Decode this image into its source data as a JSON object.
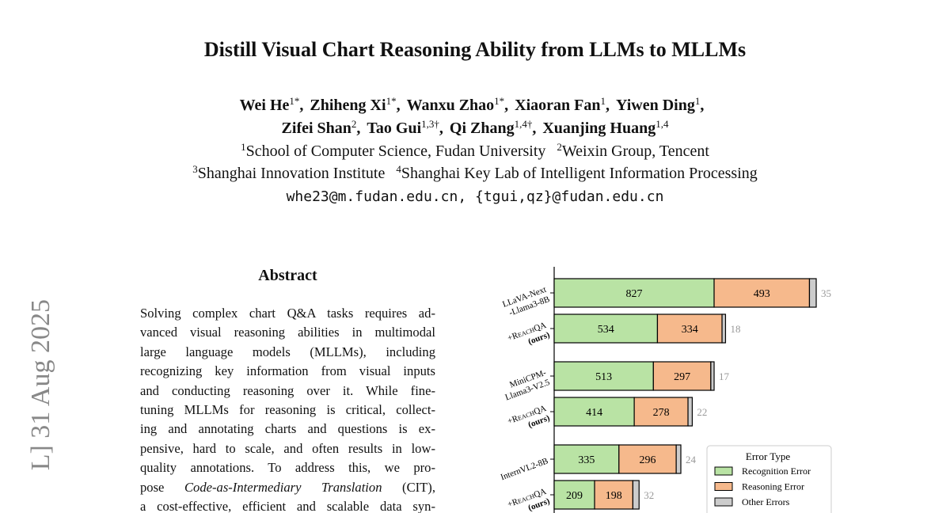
{
  "header": {
    "title": "Distill Visual Chart Reasoning Ability from LLMs to MLLMs",
    "authors": [
      [
        {
          "name": "Wei He",
          "sup": "1*",
          "sep": ","
        },
        {
          "name": "Zhiheng Xi",
          "sup": "1*",
          "sep": ","
        },
        {
          "name": "Wanxu Zhao",
          "sup": "1*",
          "sep": ","
        },
        {
          "name": "Xiaoran Fan",
          "sup": "1",
          "sep": ","
        },
        {
          "name": "Yiwen Ding",
          "sup": "1",
          "sep": ","
        }
      ],
      [
        {
          "name": "Zifei Shan",
          "sup": "2",
          "sep": ","
        },
        {
          "name": "Tao Gui",
          "sup": "1,3†",
          "sep": ","
        },
        {
          "name": "Qi Zhang",
          "sup": "1,4†",
          "sep": ","
        },
        {
          "name": "Xuanjing Huang",
          "sup": "1,4"
        }
      ]
    ],
    "affiliations": [
      [
        {
          "sup": "1",
          "text": "School of Computer Science, Fudan University"
        },
        {
          "sup": "2",
          "text": "Weixin Group, Tencent"
        }
      ],
      [
        {
          "sup": "3",
          "text": "Shanghai Innovation Institute"
        },
        {
          "sup": "4",
          "text": "Shanghai Key Lab of Intelligent Information Processing"
        }
      ]
    ],
    "emails": "whe23@m.fudan.edu.cn, {tgui,qz}@fudan.edu.cn"
  },
  "side_note": "L] 31 Aug 2025",
  "abstract": {
    "heading": "Abstract",
    "lines": [
      "Solving complex chart Q&A tasks requires ad-",
      "vanced visual reasoning abilities in multimodal",
      "large language models (MLLMs), including",
      "recognizing key information from visual inputs",
      "and conducting reasoning over it. While fine-",
      "tuning MLLMs for reasoning is critical, collect-",
      "ing and annotating charts and questions is ex-",
      "pensive, hard to scale, and often results in low-",
      "quality annotations. To address this, we pro-"
    ],
    "styled_line": {
      "before": "pose ",
      "italic": "Code-as-Intermediary Translation",
      "after": " (CIT),"
    },
    "last_line": "a cost-effective, efficient and scalable data syn-"
  },
  "chart_data": {
    "type": "bar",
    "orientation": "horizontal",
    "stacked": true,
    "categories": [
      [
        "LLaVA-Next",
        "-Llama3-8B"
      ],
      [
        "+ReachQA",
        "(ours)"
      ],
      [
        "MiniCPM-",
        "Llama3-V2.5"
      ],
      [
        "+ReachQA",
        "(ours)"
      ],
      [
        "InternVL2-8B"
      ],
      [
        "+ReachQA",
        "(ours)"
      ]
    ],
    "series": [
      {
        "name": "Recognition Error",
        "color": "#b9e3a4",
        "values": [
          827,
          534,
          513,
          414,
          335,
          209
        ]
      },
      {
        "name": "Reasoning Error",
        "color": "#f6b98c",
        "values": [
          493,
          334,
          297,
          278,
          296,
          198
        ]
      },
      {
        "name": "Other Errors",
        "color": "#cccccc",
        "values": [
          35,
          18,
          17,
          22,
          24,
          32
        ]
      }
    ],
    "legend_title": "Error Type"
  }
}
